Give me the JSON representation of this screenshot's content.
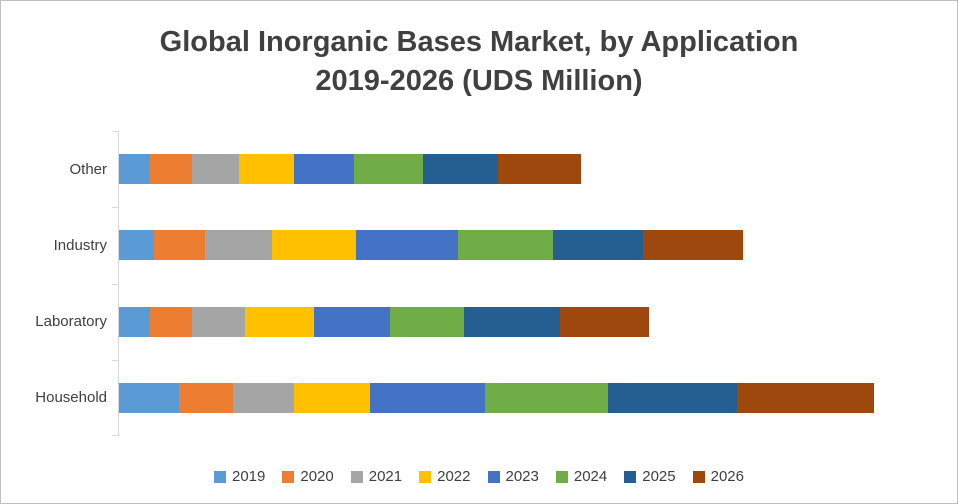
{
  "title": {
    "line1": "Global  Inorganic Bases Market, by Application",
    "line2": "2019-2026 (UDS Million)"
  },
  "chart_data": {
    "type": "bar",
    "orientation": "horizontal",
    "stacked": true,
    "grid": false,
    "legend_position": "bottom",
    "title": "Global  Inorganic Bases Market, by Application 2019-2026 (UDS Million)",
    "xlabel": "",
    "ylabel": "",
    "xlim": [
      0,
      800
    ],
    "categories": [
      "Other",
      "Industry",
      "Laboratory",
      "Household"
    ],
    "series": [
      {
        "name": "2019",
        "color": "#5B9BD5",
        "values": [
          31,
          35,
          31,
          60
        ]
      },
      {
        "name": "2020",
        "color": "#ED7D31",
        "values": [
          42,
          51,
          42,
          54
        ]
      },
      {
        "name": "2021",
        "color": "#A5A5A5",
        "values": [
          47,
          67,
          53,
          61
        ]
      },
      {
        "name": "2022",
        "color": "#FFC000",
        "values": [
          55,
          84,
          69,
          76
        ]
      },
      {
        "name": "2023",
        "color": "#4472C4",
        "values": [
          60,
          102,
          76,
          115
        ]
      },
      {
        "name": "2024",
        "color": "#70AD47",
        "values": [
          69,
          96,
          74,
          124
        ]
      },
      {
        "name": "2025",
        "color": "#255E91",
        "values": [
          76,
          90,
          97,
          129
        ]
      },
      {
        "name": "2026",
        "color": "#9E480E",
        "values": [
          83,
          100,
          89,
          137
        ]
      }
    ],
    "axis_color": "#D9D9D9",
    "text_color": "#404040"
  }
}
